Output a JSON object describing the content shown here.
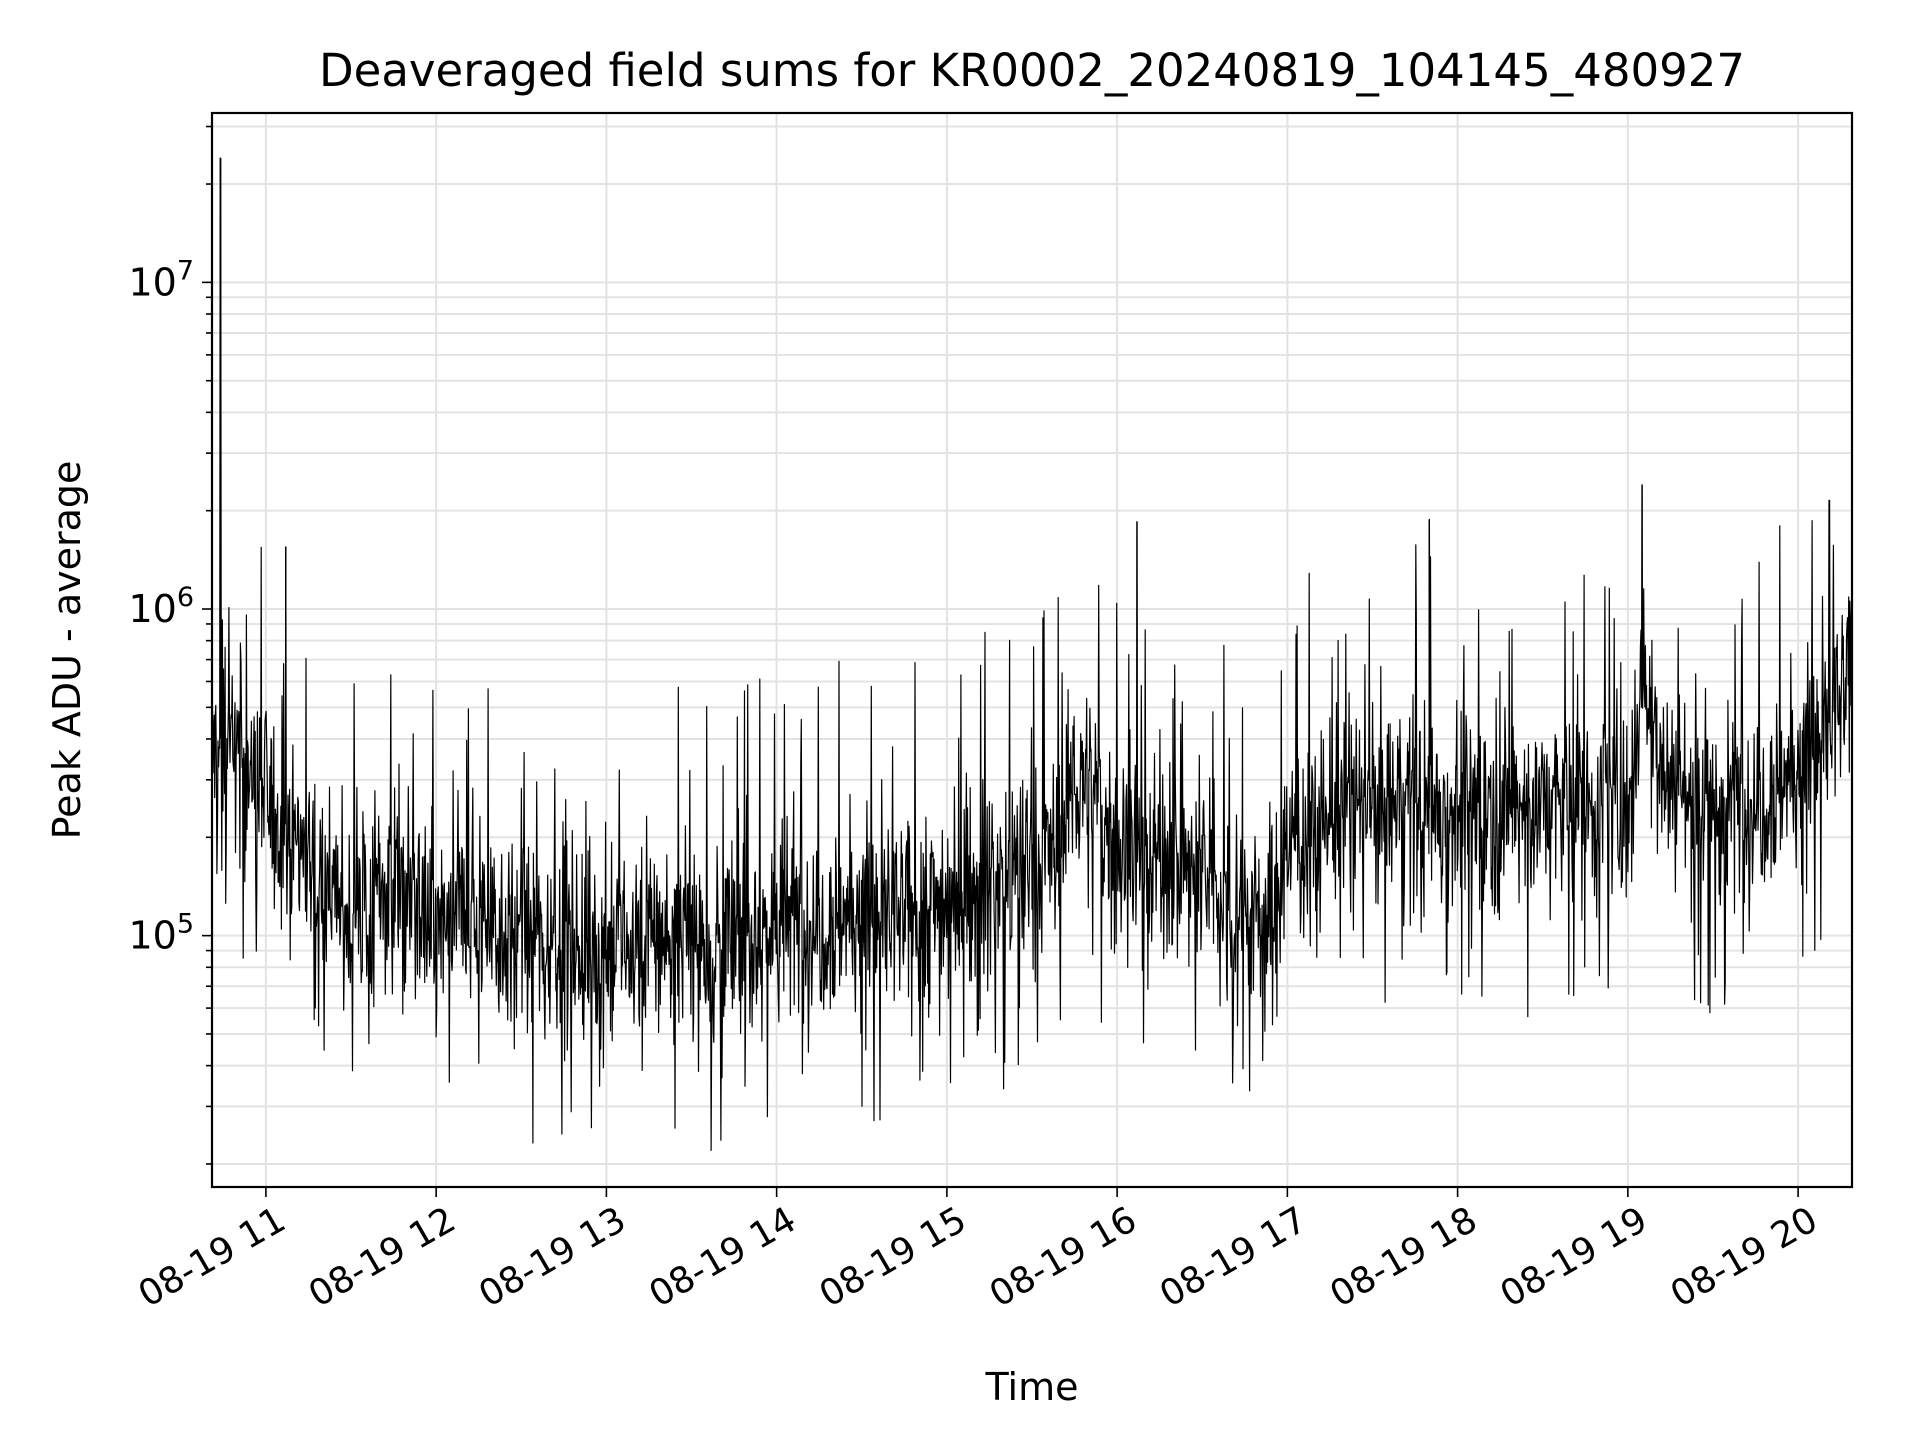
{
  "chart_data": {
    "type": "line",
    "title": "Deaveraged field sums for KR0002_20240819_104145_480927",
    "xlabel": "Time",
    "ylabel": "Peak ADU - average",
    "yscale": "log",
    "grid": "on (major and minor)",
    "legend": "none",
    "xlim": [
      "2024-08-19 10:41",
      "2024-08-19 20:19"
    ],
    "ylim": [
      17000,
      33000000
    ],
    "x_ticks": [
      "08-19 11",
      "08-19 12",
      "08-19 13",
      "08-19 14",
      "08-19 15",
      "08-19 16",
      "08-19 17",
      "08-19 18",
      "08-19 19",
      "08-19 20"
    ],
    "y_ticks": [
      "10^5",
      "10^6",
      "10^7"
    ],
    "line_color": "#000000",
    "series": [
      {
        "x": [
          "2024-08-19 10:41",
          "2024-08-19 10:45",
          "2024-08-19 11:00",
          "2024-08-19 11:15",
          "2024-08-19 11:30",
          "2024-08-19 11:45",
          "2024-08-19 12:00",
          "2024-08-19 12:15",
          "2024-08-19 12:30",
          "2024-08-19 12:45",
          "2024-08-19 13:00",
          "2024-08-19 13:15",
          "2024-08-19 13:30",
          "2024-08-19 13:45",
          "2024-08-19 14:00",
          "2024-08-19 14:15",
          "2024-08-19 14:30",
          "2024-08-19 14:45",
          "2024-08-19 15:00",
          "2024-08-19 15:15",
          "2024-08-19 15:30",
          "2024-08-19 15:40",
          "2024-08-19 15:45",
          "2024-08-19 16:00",
          "2024-08-19 16:15",
          "2024-08-19 16:30",
          "2024-08-19 16:45",
          "2024-08-19 16:55",
          "2024-08-19 17:00",
          "2024-08-19 17:15",
          "2024-08-19 17:30",
          "2024-08-19 17:45",
          "2024-08-19 18:00",
          "2024-08-19 18:15",
          "2024-08-19 18:30",
          "2024-08-19 18:45",
          "2024-08-19 19:00",
          "2024-08-19 19:05",
          "2024-08-19 19:15",
          "2024-08-19 19:30",
          "2024-08-19 19:45",
          "2024-08-19 20:00",
          "2024-08-19 20:19"
        ],
        "values": [
          350000,
          420000,
          260000,
          180000,
          110000,
          150000,
          100000,
          120000,
          95000,
          100000,
          85000,
          100000,
          95000,
          95000,
          110000,
          110000,
          120000,
          110000,
          130000,
          145000,
          160000,
          190000,
          320000,
          190000,
          175000,
          150000,
          120000,
          110000,
          190000,
          230000,
          260000,
          250000,
          240000,
          250000,
          250000,
          260000,
          250000,
          600000,
          300000,
          250000,
          260000,
          330000,
          560000
        ]
      }
    ],
    "spikes": [
      {
        "x": "2024-08-19 10:44",
        "value": 24000000
      },
      {
        "x": "2024-08-19 11:07",
        "value": 1550000
      },
      {
        "x": "2024-08-19 16:07",
        "value": 1850000
      },
      {
        "x": "2024-08-19 17:50",
        "value": 1880000
      },
      {
        "x": "2024-08-19 19:05",
        "value": 2400000
      },
      {
        "x": "2024-08-19 20:11",
        "value": 2150000
      }
    ]
  }
}
